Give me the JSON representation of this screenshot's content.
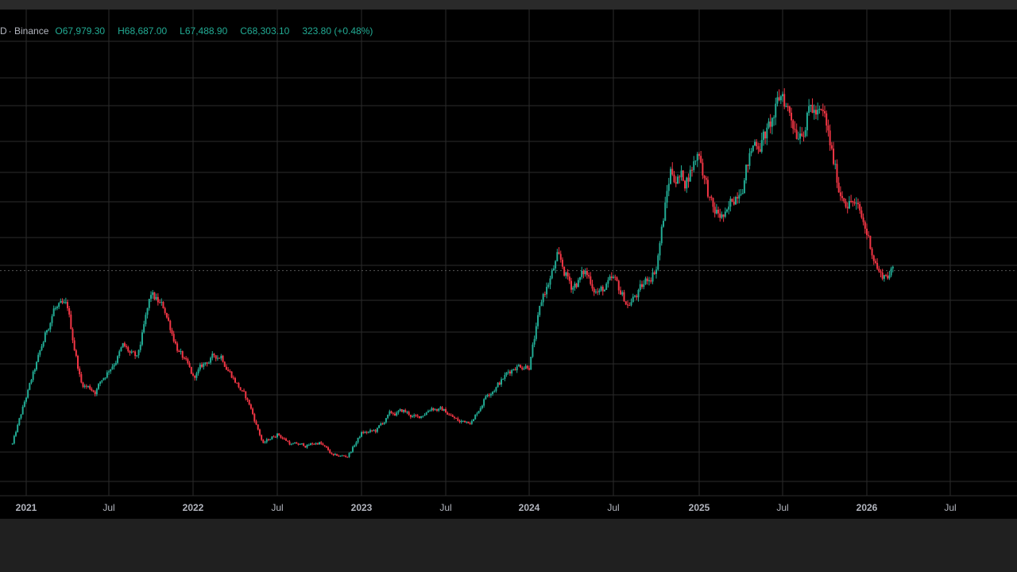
{
  "legend": {
    "symbol_fragment": "D",
    "exchange": "· Binance",
    "open_label": "O",
    "open": "67,979.30",
    "high_label": "H",
    "high": "68,687.00",
    "low_label": "L",
    "low": "67,488.90",
    "close_label": "C",
    "close": "68,303.10",
    "change": "323.80 (+0.48%)"
  },
  "colors": {
    "background": "#000000",
    "grid": "#2b2b2b",
    "up": "#22ab94",
    "down": "#f23645",
    "text": "#b2b5be",
    "last_price_line": "#3a3a3a"
  },
  "chart_data": {
    "type": "candlestick",
    "title": "",
    "xlabel": "",
    "ylabel": "",
    "x_ticks": [
      "2021",
      "Jul",
      "2022",
      "Jul",
      "2023",
      "Jul",
      "2024",
      "Jul",
      "2025",
      "Jul",
      "2026",
      "Jul"
    ],
    "price_range": [
      15000,
      130000
    ],
    "last_close": 68303.1,
    "grid": true,
    "series": [
      {
        "kind": "monthly_close_trend",
        "dates": [
          "2020-12",
          "2021-01",
          "2021-02",
          "2021-03",
          "2021-04",
          "2021-05",
          "2021-06",
          "2021-07",
          "2021-08",
          "2021-09",
          "2021-10",
          "2021-11",
          "2021-12",
          "2022-01",
          "2022-02",
          "2022-03",
          "2022-04",
          "2022-05",
          "2022-06",
          "2022-07",
          "2022-08",
          "2022-09",
          "2022-10",
          "2022-11",
          "2022-12",
          "2023-01",
          "2023-02",
          "2023-03",
          "2023-04",
          "2023-05",
          "2023-06",
          "2023-07",
          "2023-08",
          "2023-09",
          "2023-10",
          "2023-11",
          "2023-12",
          "2024-01",
          "2024-02",
          "2024-03",
          "2024-04",
          "2024-05",
          "2024-06",
          "2024-07",
          "2024-08",
          "2024-09",
          "2024-10",
          "2024-11",
          "2024-12",
          "2025-01",
          "2025-02",
          "2025-03",
          "2025-04",
          "2025-05",
          "2025-06",
          "2025-07",
          "2025-08",
          "2025-09",
          "2025-10",
          "2025-11",
          "2025-12",
          "2026-01",
          "2026-02",
          "2026-03"
        ],
        "close": [
          20000,
          33000,
          45000,
          58000,
          57000,
          37000,
          35000,
          41000,
          47000,
          43000,
          61000,
          57000,
          46000,
          38000,
          43000,
          45000,
          38000,
          31000,
          20000,
          23000,
          20000,
          19500,
          20500,
          16500,
          16600,
          23000,
          23500,
          28000,
          29000,
          27000,
          30500,
          29000,
          26000,
          27000,
          34500,
          37700,
          42000,
          42500,
          61000,
          71000,
          64000,
          67500,
          62500,
          64500,
          59000,
          63000,
          70000,
          96000,
          93500,
          102000,
          84000,
          82500,
          94000,
          104000,
          107000,
          117000,
          108500,
          114000,
          109000,
          91000,
          88000,
          78500,
          67000,
          68300
        ]
      }
    ]
  }
}
